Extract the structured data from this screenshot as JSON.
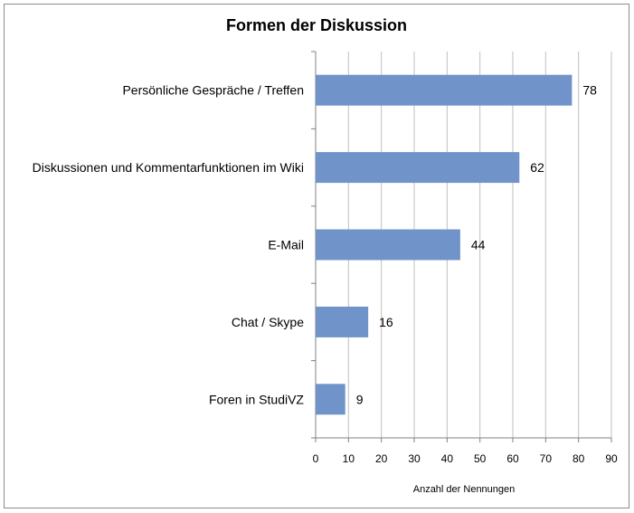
{
  "chart_data": {
    "type": "bar",
    "orientation": "horizontal",
    "title": "Formen der Diskussion",
    "xlabel": "Anzahl der Nennungen",
    "ylabel": "",
    "categories": [
      "Persönliche Gespräche / Treffen",
      "Diskussionen und Kommentarfunktionen im Wiki",
      "E-Mail",
      "Chat / Skype",
      "Foren in StudiVZ"
    ],
    "values": [
      78,
      62,
      44,
      16,
      9
    ],
    "xlim": [
      0,
      90
    ],
    "xticks": [
      0,
      10,
      20,
      30,
      40,
      50,
      60,
      70,
      80,
      90
    ],
    "grid": "vertical",
    "data_labels": true,
    "bar_color": "#7094c9"
  }
}
